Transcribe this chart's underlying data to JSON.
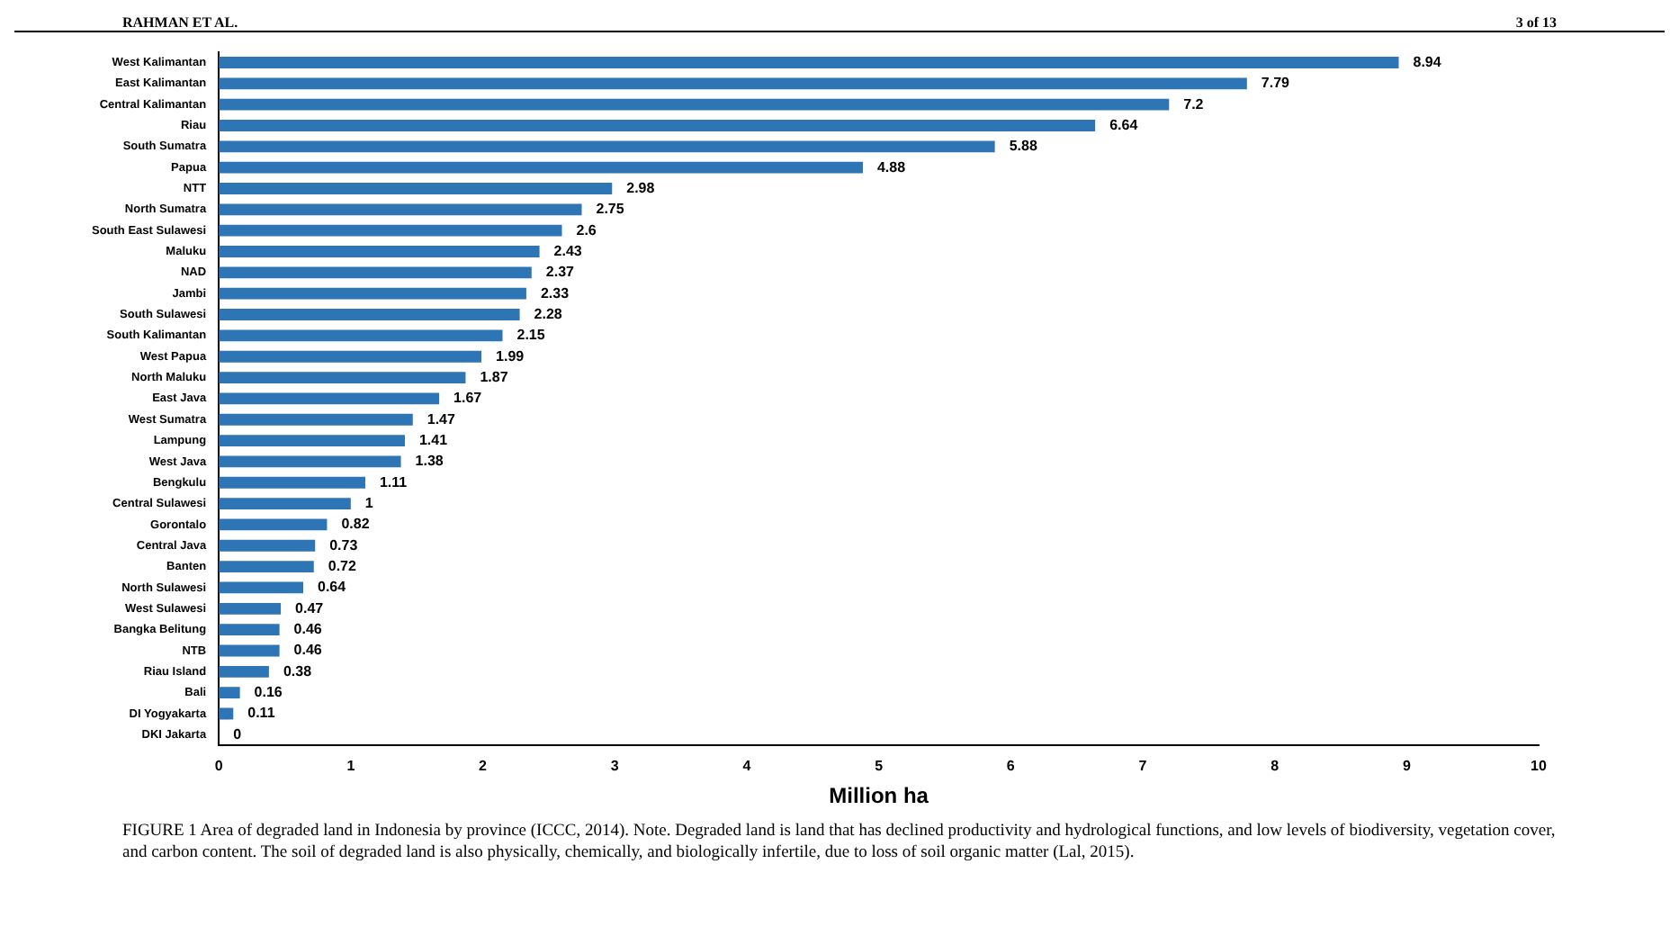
{
  "chart_data": {
    "type": "bar",
    "orientation": "horizontal",
    "xlabel": "Million ha",
    "categories": [
      "West Kalimantan",
      "East Kalimantan",
      "Central Kalimantan",
      "Riau",
      "South Sumatra",
      "Papua",
      "NTT",
      "North Sumatra",
      "South East Sulawesi",
      "Maluku",
      "NAD",
      "Jambi",
      "South Sulawesi",
      "South Kalimantan",
      "West Papua",
      "North Maluku",
      "East Java",
      "West Sumatra",
      "Lampung",
      "West Java",
      "Bengkulu",
      "Central Sulawesi",
      "Gorontalo",
      "Central Java",
      "Banten",
      "North Sulawesi",
      "West Sulawesi",
      "Bangka Belitung",
      "NTB",
      "Riau Island",
      "Bali",
      "DI Yogyakarta",
      "DKI Jakarta"
    ],
    "values": [
      8.94,
      7.79,
      7.2,
      6.64,
      5.88,
      4.88,
      2.98,
      2.75,
      2.6,
      2.43,
      2.37,
      2.33,
      2.28,
      2.15,
      1.99,
      1.87,
      1.67,
      1.47,
      1.41,
      1.38,
      1.11,
      1,
      0.82,
      0.73,
      0.72,
      0.64,
      0.47,
      0.46,
      0.46,
      0.38,
      0.16,
      0.11,
      0
    ],
    "color": "#2e75b6",
    "data_labels": true,
    "grid": false,
    "legend": false,
    "xlim": [
      0,
      10
    ],
    "xticks": [
      0,
      1,
      2,
      3,
      4,
      5,
      6,
      7,
      8,
      9,
      10
    ],
    "annotations": [
      "RAHMAN ET AL.",
      "3 of 13",
      "FIGURE 1 Area of degraded land in Indonesia by province (ICCC, 2014). Note. Degraded land is land that has declined productivity and hydrological functions, and low levels of biodiversity, vegetation cover, and carbon content. The soil of degraded land is also physically, chemically, and biologically infertile, due to loss of soil organic matter (Lal, 2015)."
    ]
  }
}
